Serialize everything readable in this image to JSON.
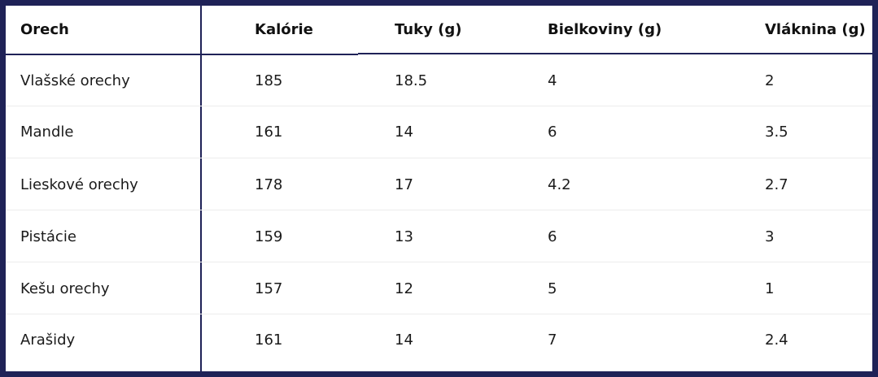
{
  "table": {
    "headers": [
      "Orech",
      "Kalórie",
      "Tuky (g)",
      "Bielkoviny (g)",
      "Vláknina (g)"
    ],
    "rows": [
      [
        "Vlašské orechy",
        "185",
        "18.5",
        "4",
        "2"
      ],
      [
        "Mandle",
        "161",
        "14",
        "6",
        "3.5"
      ],
      [
        "Lieskové orechy",
        "178",
        "17",
        "4.2",
        "2.7"
      ],
      [
        "Pistácie",
        "159",
        "13",
        "6",
        "3"
      ],
      [
        "Kešu orechy",
        "157",
        "12",
        "5",
        "1"
      ],
      [
        "Arašidy",
        "161",
        "14",
        "7",
        "2.4"
      ]
    ]
  },
  "colors": {
    "frame": "#1f2257",
    "background": "#ffffff",
    "row_separator": "#ececec"
  }
}
